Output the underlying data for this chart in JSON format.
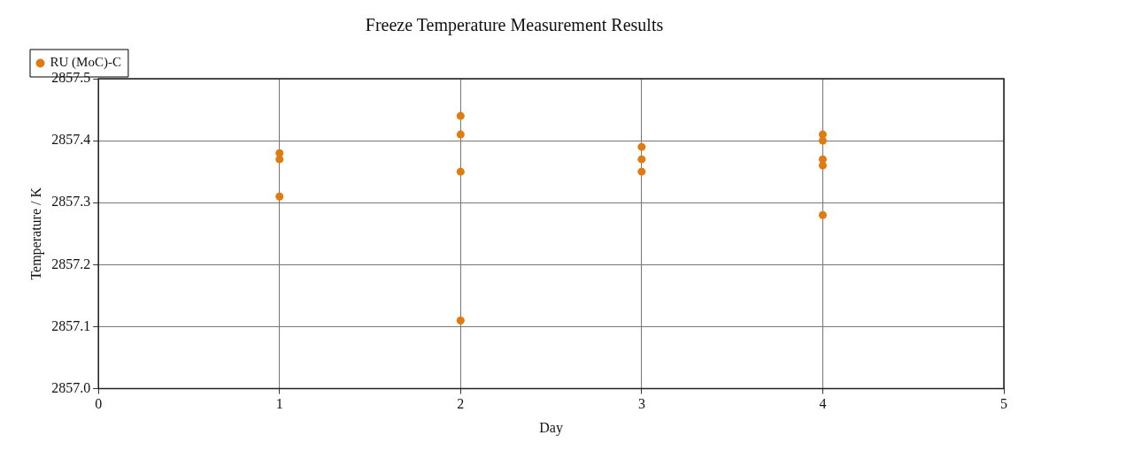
{
  "chart_data": {
    "type": "scatter",
    "title": "Freeze Temperature Measurement Results",
    "xlabel": "Day",
    "ylabel": "Temperature / K",
    "series": [
      {
        "name": "RU (MoC)-C",
        "color": "#e07b10",
        "x": [
          1,
          1,
          1,
          2,
          2,
          2,
          2,
          3,
          3,
          3,
          4,
          4,
          4,
          4,
          4
        ],
        "values": [
          2857.38,
          2857.37,
          2857.31,
          2857.44,
          2857.41,
          2857.35,
          2857.11,
          2857.39,
          2857.37,
          2857.35,
          2857.41,
          2857.4,
          2857.37,
          2857.36,
          2857.28
        ]
      }
    ],
    "xlim": [
      0,
      5
    ],
    "xticks": [
      0,
      1,
      2,
      3,
      4,
      5
    ],
    "ylim": [
      2857.0,
      2857.5
    ],
    "yticks": [
      {
        "value": 2857,
        "label": "2857.0"
      },
      2857.1,
      2857.2,
      2857.3,
      2857.4,
      2857.5
    ],
    "grid": true,
    "legend": "top left",
    "marker": "circle"
  }
}
